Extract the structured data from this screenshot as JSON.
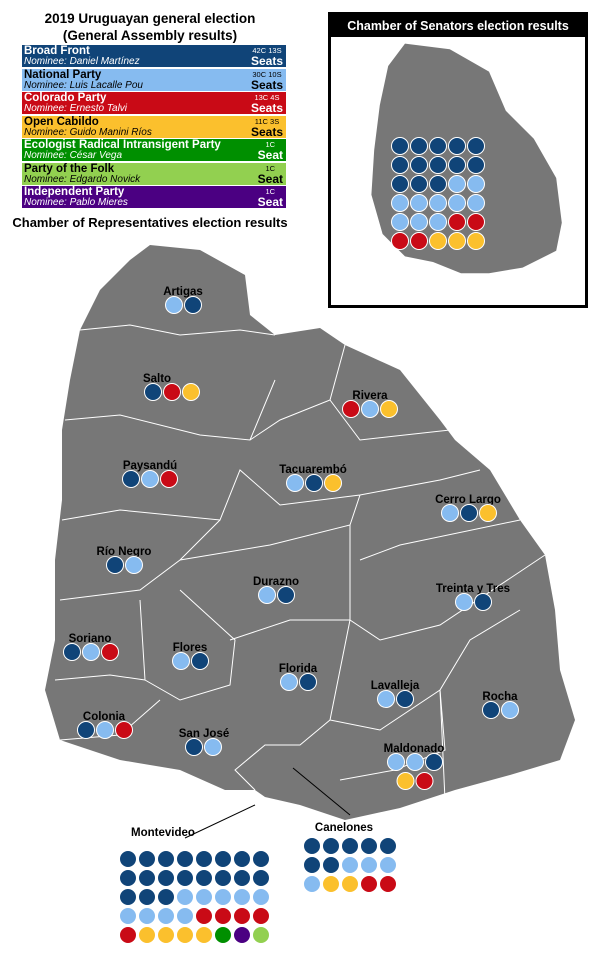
{
  "title_line1": "2019 Uruguayan general election",
  "title_line2": "(General Assembly results)",
  "reps_title": "Chamber of Representatives election results",
  "senate_title": "Chamber of Senators election results",
  "parties": {
    "FA": {
      "name": "Broad Front",
      "nominee": "Nominee: Daniel Martínez",
      "seats_small": "42C 13S",
      "seats_big": "Seats",
      "color": "#104478",
      "text": "#ffffff"
    },
    "PN": {
      "name": "National Party",
      "nominee": "Nominee: Luis Lacalle Pou",
      "seats_small": "30C 10S",
      "seats_big": "Seats",
      "color": "#86bbf0",
      "text": "#000000"
    },
    "PC": {
      "name": "Colorado Party",
      "nominee": "Nominee: Ernesto Talvi",
      "seats_small": "13C 4S",
      "seats_big": "Seats",
      "color": "#c90a16",
      "text": "#ffffff"
    },
    "CA": {
      "name": "Open Cabildo",
      "nominee": "Nominee: Guido Manini Ríos",
      "seats_small": "11C 3S",
      "seats_big": "Seats",
      "color": "#fbc02d",
      "text": "#000000"
    },
    "PERI": {
      "name": "Ecologist Radical Intransigent Party",
      "nominee": "Nominee: César Vega",
      "seats_small": "1C",
      "seats_big": "Seat",
      "color": "#008f00",
      "text": "#ffffff"
    },
    "PG": {
      "name": "Party of the Folk",
      "nominee": "Nominee: Edgardo Novick",
      "seats_small": "1C",
      "seats_big": "Seat",
      "color": "#92d050",
      "text": "#000000"
    },
    "PI": {
      "name": "Independent Party",
      "nominee": "Nominee: Pablo Mieres",
      "seats_small": "1C",
      "seats_big": "Seat",
      "color": "#4b0082",
      "text": "#ffffff"
    }
  },
  "party_order": [
    "FA",
    "PN",
    "PC",
    "CA",
    "PERI",
    "PG",
    "PI"
  ],
  "map_color": "#777777",
  "senate_seats": [
    "FA",
    "FA",
    "FA",
    "FA",
    "FA",
    "FA",
    "FA",
    "FA",
    "FA",
    "FA",
    "FA",
    "FA",
    "FA",
    "PN",
    "PN",
    "PN",
    "PN",
    "PN",
    "PN",
    "PN",
    "PN",
    "PN",
    "PN",
    "PC",
    "PC",
    "PC",
    "PC",
    "CA",
    "CA",
    "CA"
  ],
  "departments": [
    {
      "name": "Artigas",
      "seats": [
        "PN",
        "FA"
      ]
    },
    {
      "name": "Salto",
      "seats": [
        "FA",
        "PC",
        "CA"
      ]
    },
    {
      "name": "Rivera",
      "seats": [
        "PC",
        "PN",
        "CA"
      ]
    },
    {
      "name": "Paysandú",
      "seats": [
        "FA",
        "PN",
        "PC"
      ]
    },
    {
      "name": "Tacuarembó",
      "seats": [
        "PN",
        "FA",
        "CA"
      ]
    },
    {
      "name": "Cerro Largo",
      "seats": [
        "PN",
        "FA",
        "CA"
      ]
    },
    {
      "name": "Río Negro",
      "seats": [
        "FA",
        "PN"
      ]
    },
    {
      "name": "Durazno",
      "seats": [
        "PN",
        "FA"
      ]
    },
    {
      "name": "Treinta y Tres",
      "seats": [
        "PN",
        "FA"
      ]
    },
    {
      "name": "Soriano",
      "seats": [
        "FA",
        "PN",
        "PC"
      ]
    },
    {
      "name": "Flores",
      "seats": [
        "PN",
        "FA"
      ]
    },
    {
      "name": "Florida",
      "seats": [
        "PN",
        "FA"
      ]
    },
    {
      "name": "Lavalleja",
      "seats": [
        "PN",
        "FA"
      ]
    },
    {
      "name": "Rocha",
      "seats": [
        "FA",
        "PN"
      ]
    },
    {
      "name": "Colonia",
      "seats": [
        "FA",
        "PN",
        "PC"
      ]
    },
    {
      "name": "San José",
      "seats": [
        "FA",
        "PN"
      ]
    },
    {
      "name": "Maldonado",
      "seats": [
        "PN",
        "PN",
        "FA",
        "CA",
        "PC"
      ]
    },
    {
      "name": "Montevideo",
      "seats": [
        "FA",
        "FA",
        "FA",
        "FA",
        "FA",
        "FA",
        "FA",
        "FA",
        "FA",
        "FA",
        "FA",
        "FA",
        "FA",
        "FA",
        "FA",
        "FA",
        "FA",
        "FA",
        "FA",
        "PN",
        "PN",
        "PN",
        "PN",
        "PN",
        "PN",
        "PN",
        "PN",
        "PN",
        "PC",
        "PC",
        "PC",
        "PC",
        "PC",
        "CA",
        "CA",
        "CA",
        "CA",
        "PERI",
        "PI",
        "PG"
      ]
    },
    {
      "name": "Canelones",
      "seats": [
        "FA",
        "FA",
        "FA",
        "FA",
        "FA",
        "FA",
        "FA",
        "PN",
        "PN",
        "PN",
        "PN",
        "CA",
        "CA",
        "PC",
        "PC"
      ]
    }
  ]
}
